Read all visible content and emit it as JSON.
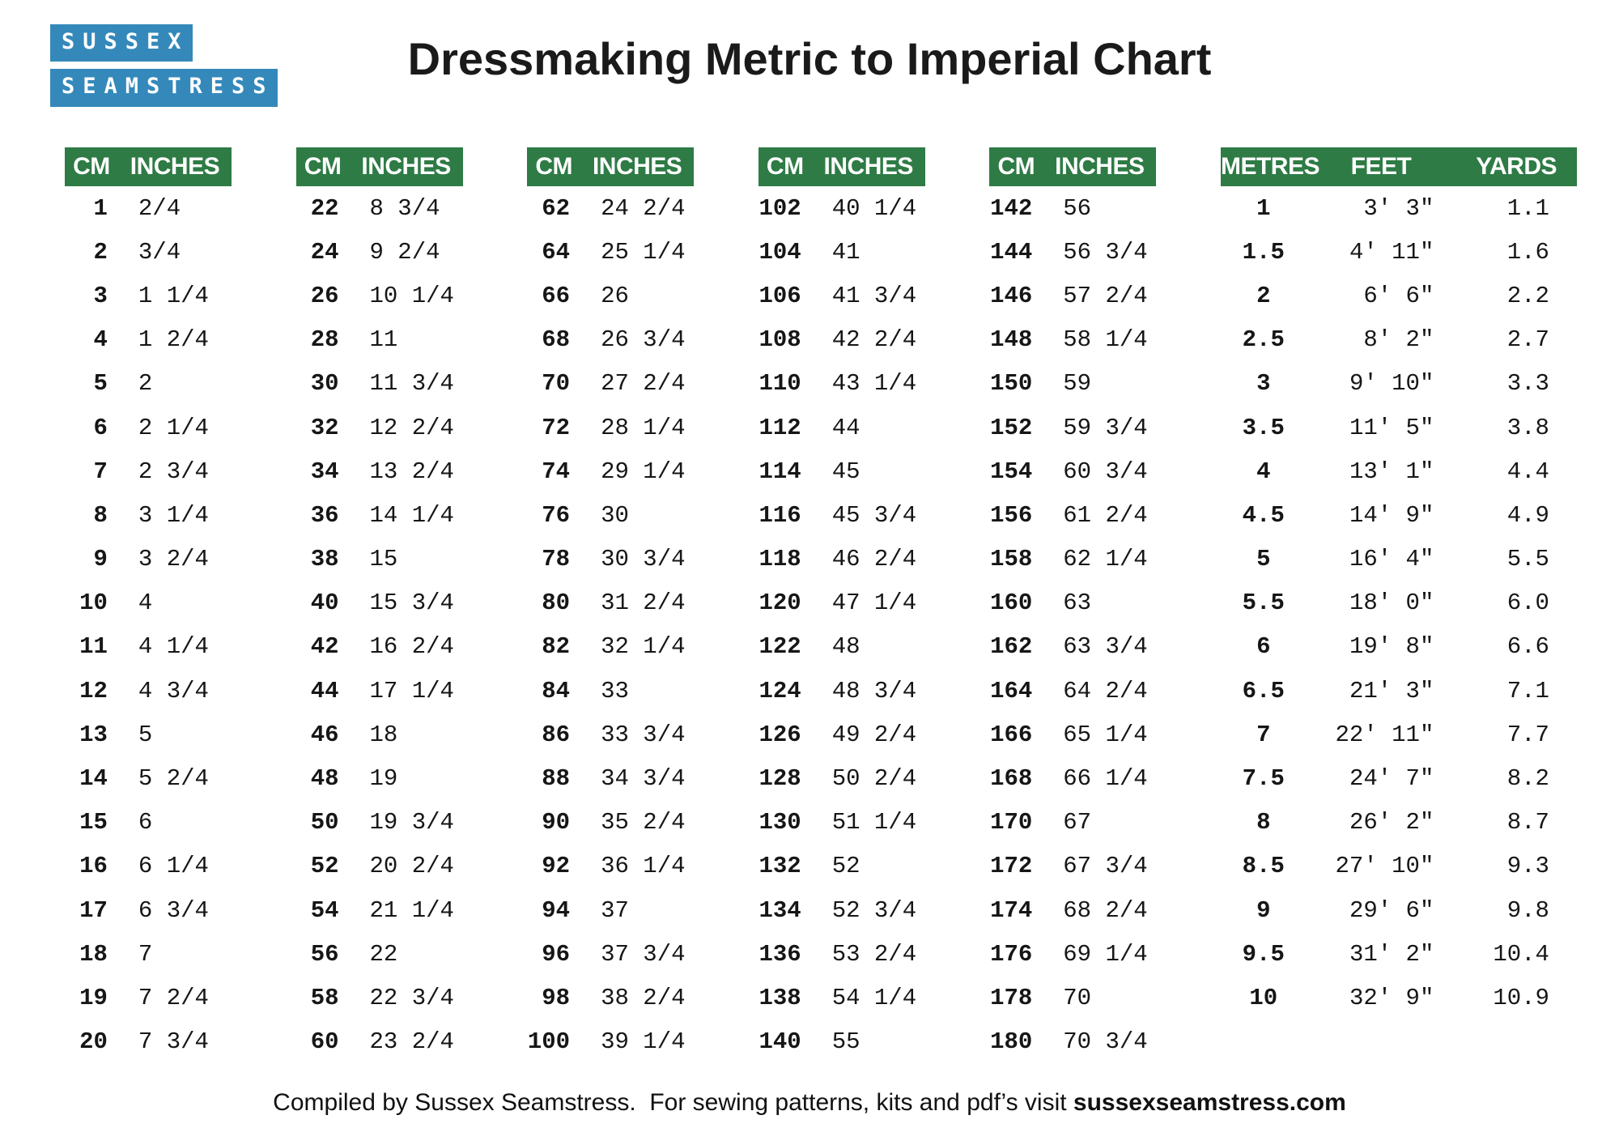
{
  "title": "Dressmaking Metric to Imperial Chart",
  "logo": {
    "line1": "SUSSEX",
    "line2": "SEAMSTRESS"
  },
  "footer": {
    "prefix": "Compiled by Sussex Seamstress.  For sewing patterns, kits and pdf’s visit ",
    "website": "sussexseamstress.com"
  },
  "colors": {
    "header_green": "#2e7b45",
    "logo_blue": "#3489ba",
    "text": "#1c1c1c"
  },
  "chart_data": [
    {
      "type": "table",
      "columns": [
        "CM",
        "INCHES"
      ],
      "rows": [
        [
          "1",
          "2/4"
        ],
        [
          "2",
          "3/4"
        ],
        [
          "3",
          "1 1/4"
        ],
        [
          "4",
          "1 2/4"
        ],
        [
          "5",
          "2"
        ],
        [
          "6",
          "2 1/4"
        ],
        [
          "7",
          "2 3/4"
        ],
        [
          "8",
          "3 1/4"
        ],
        [
          "9",
          "3 2/4"
        ],
        [
          "10",
          "4"
        ],
        [
          "11",
          "4 1/4"
        ],
        [
          "12",
          "4 3/4"
        ],
        [
          "13",
          "5"
        ],
        [
          "14",
          "5 2/4"
        ],
        [
          "15",
          "6"
        ],
        [
          "16",
          "6 1/4"
        ],
        [
          "17",
          "6 3/4"
        ],
        [
          "18",
          "7"
        ],
        [
          "19",
          "7 2/4"
        ],
        [
          "20",
          "7 3/4"
        ]
      ]
    },
    {
      "type": "table",
      "columns": [
        "CM",
        "INCHES"
      ],
      "rows": [
        [
          "22",
          "8 3/4"
        ],
        [
          "24",
          "9 2/4"
        ],
        [
          "26",
          "10 1/4"
        ],
        [
          "28",
          "11"
        ],
        [
          "30",
          "11 3/4"
        ],
        [
          "32",
          "12 2/4"
        ],
        [
          "34",
          "13 2/4"
        ],
        [
          "36",
          "14 1/4"
        ],
        [
          "38",
          "15"
        ],
        [
          "40",
          "15 3/4"
        ],
        [
          "42",
          "16 2/4"
        ],
        [
          "44",
          "17 1/4"
        ],
        [
          "46",
          "18"
        ],
        [
          "48",
          "19"
        ],
        [
          "50",
          "19 3/4"
        ],
        [
          "52",
          "20 2/4"
        ],
        [
          "54",
          "21 1/4"
        ],
        [
          "56",
          "22"
        ],
        [
          "58",
          "22 3/4"
        ],
        [
          "60",
          "23 2/4"
        ]
      ]
    },
    {
      "type": "table",
      "columns": [
        "CM",
        "INCHES"
      ],
      "rows": [
        [
          "62",
          "24 2/4"
        ],
        [
          "64",
          "25 1/4"
        ],
        [
          "66",
          "26"
        ],
        [
          "68",
          "26 3/4"
        ],
        [
          "70",
          "27 2/4"
        ],
        [
          "72",
          "28 1/4"
        ],
        [
          "74",
          "29 1/4"
        ],
        [
          "76",
          "30"
        ],
        [
          "78",
          "30 3/4"
        ],
        [
          "80",
          "31 2/4"
        ],
        [
          "82",
          "32 1/4"
        ],
        [
          "84",
          "33"
        ],
        [
          "86",
          "33 3/4"
        ],
        [
          "88",
          "34 3/4"
        ],
        [
          "90",
          "35 2/4"
        ],
        [
          "92",
          "36 1/4"
        ],
        [
          "94",
          "37"
        ],
        [
          "96",
          "37 3/4"
        ],
        [
          "98",
          "38 2/4"
        ],
        [
          "100",
          "39 1/4"
        ]
      ]
    },
    {
      "type": "table",
      "columns": [
        "CM",
        "INCHES"
      ],
      "rows": [
        [
          "102",
          "40 1/4"
        ],
        [
          "104",
          "41"
        ],
        [
          "106",
          "41 3/4"
        ],
        [
          "108",
          "42 2/4"
        ],
        [
          "110",
          "43 1/4"
        ],
        [
          "112",
          "44"
        ],
        [
          "114",
          "45"
        ],
        [
          "116",
          "45 3/4"
        ],
        [
          "118",
          "46 2/4"
        ],
        [
          "120",
          "47 1/4"
        ],
        [
          "122",
          "48"
        ],
        [
          "124",
          "48 3/4"
        ],
        [
          "126",
          "49 2/4"
        ],
        [
          "128",
          "50 2/4"
        ],
        [
          "130",
          "51 1/4"
        ],
        [
          "132",
          "52"
        ],
        [
          "134",
          "52 3/4"
        ],
        [
          "136",
          "53 2/4"
        ],
        [
          "138",
          "54 1/4"
        ],
        [
          "140",
          "55"
        ]
      ]
    },
    {
      "type": "table",
      "columns": [
        "CM",
        "INCHES"
      ],
      "rows": [
        [
          "142",
          "56"
        ],
        [
          "144",
          "56 3/4"
        ],
        [
          "146",
          "57 2/4"
        ],
        [
          "148",
          "58 1/4"
        ],
        [
          "150",
          "59"
        ],
        [
          "152",
          "59 3/4"
        ],
        [
          "154",
          "60 3/4"
        ],
        [
          "156",
          "61 2/4"
        ],
        [
          "158",
          "62 1/4"
        ],
        [
          "160",
          "63"
        ],
        [
          "162",
          "63 3/4"
        ],
        [
          "164",
          "64 2/4"
        ],
        [
          "166",
          "65 1/4"
        ],
        [
          "168",
          "66 1/4"
        ],
        [
          "170",
          "67"
        ],
        [
          "172",
          "67 3/4"
        ],
        [
          "174",
          "68 2/4"
        ],
        [
          "176",
          "69 1/4"
        ],
        [
          "178",
          "70"
        ],
        [
          "180",
          "70 3/4"
        ]
      ]
    },
    {
      "type": "table",
      "columns": [
        "METRES",
        "FEET",
        "YARDS"
      ],
      "rows": [
        [
          "1",
          "3' 3\"",
          "1.1"
        ],
        [
          "1.5",
          "4' 11\"",
          "1.6"
        ],
        [
          "2",
          "6' 6\"",
          "2.2"
        ],
        [
          "2.5",
          "8' 2\"",
          "2.7"
        ],
        [
          "3",
          "9' 10\"",
          "3.3"
        ],
        [
          "3.5",
          "11' 5\"",
          "3.8"
        ],
        [
          "4",
          "13' 1\"",
          "4.4"
        ],
        [
          "4.5",
          "14' 9\"",
          "4.9"
        ],
        [
          "5",
          "16' 4\"",
          "5.5"
        ],
        [
          "5.5",
          "18' 0\"",
          "6.0"
        ],
        [
          "6",
          "19' 8\"",
          "6.6"
        ],
        [
          "6.5",
          "21' 3\"",
          "7.1"
        ],
        [
          "7",
          "22' 11\"",
          "7.7"
        ],
        [
          "7.5",
          "24' 7\"",
          "8.2"
        ],
        [
          "8",
          "26' 2\"",
          "8.7"
        ],
        [
          "8.5",
          "27' 10\"",
          "9.3"
        ],
        [
          "9",
          "29' 6\"",
          "9.8"
        ],
        [
          "9.5",
          "31' 2\"",
          "10.4"
        ],
        [
          "10",
          "32' 9\"",
          "10.9"
        ]
      ]
    }
  ]
}
